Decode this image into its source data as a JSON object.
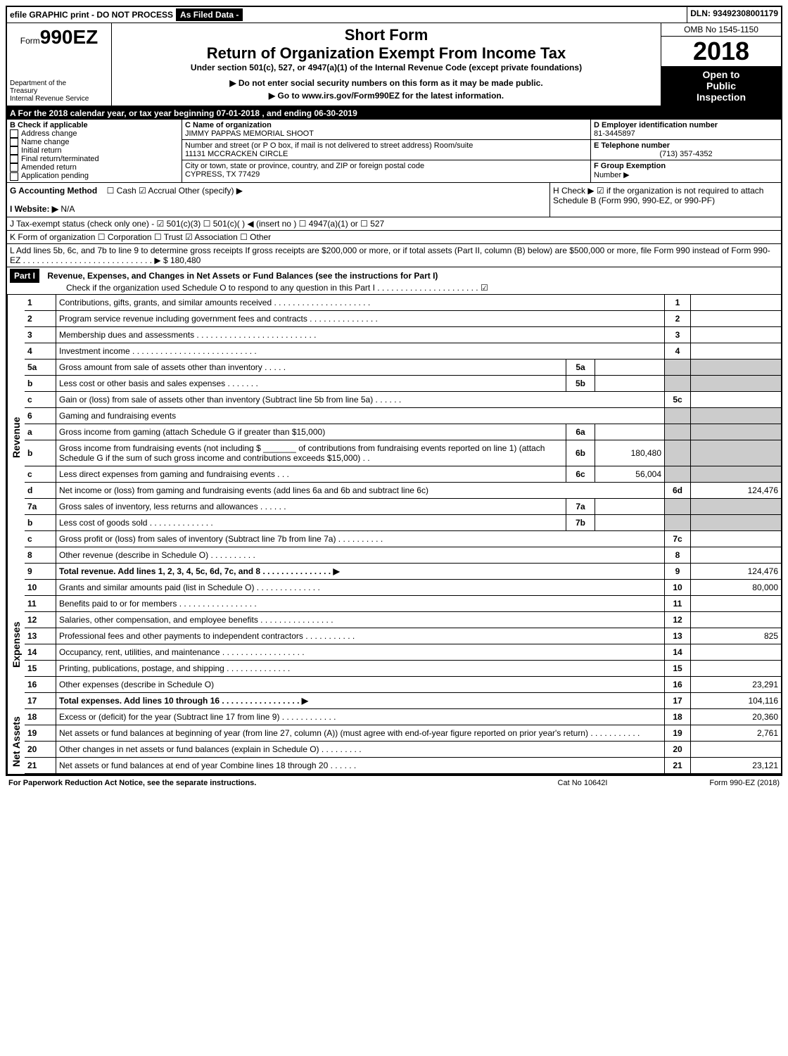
{
  "topbar": {
    "efile": "efile GRAPHIC print - DO NOT PROCESS",
    "as_filed": "As Filed Data -",
    "dln": "DLN: 93492308001179"
  },
  "header": {
    "form_prefix": "Form",
    "form_number": "990EZ",
    "short_form": "Short Form",
    "return_title": "Return of Organization Exempt From Income Tax",
    "subtitle": "Under section 501(c), 527, or 4947(a)(1) of the Internal Revenue Code (except private foundations)",
    "warn1": "▶ Do not enter social security numbers on this form as it may be made public.",
    "warn2": "▶ Go to www.irs.gov/Form990EZ for the latest information.",
    "dept1": "Department of the",
    "dept2": "Treasury",
    "dept3": "Internal Revenue Service",
    "omb": "OMB No 1545-1150",
    "year": "2018",
    "open1": "Open to",
    "open2": "Public",
    "open3": "Inspection"
  },
  "row_a": "A  For the 2018 calendar year, or tax year beginning 07-01-2018          , and ending 06-30-2019",
  "section_b": {
    "label": "B  Check if applicable",
    "items": [
      "Address change",
      "Name change",
      "Initial return",
      "Final return/terminated",
      "Amended return",
      "Application pending"
    ]
  },
  "section_c": {
    "c_label": "C Name of organization",
    "c_value": "JIMMY PAPPAS MEMORIAL SHOOT",
    "addr_label": "Number and street (or P O box, if mail is not delivered to street address)  Room/suite",
    "addr_value": "11131 MCCRACKEN CIRCLE",
    "city_label": "City or town, state or province, country, and ZIP or foreign postal code",
    "city_value": "CYPRESS, TX  77429"
  },
  "section_d": {
    "d_label": "D Employer identification number",
    "d_value": "81-3445897",
    "e_label": "E Telephone number",
    "e_value": "(713) 357-4352",
    "f_label": "F Group Exemption",
    "f_label2": "Number    ▶"
  },
  "g": {
    "label": "G Accounting Method",
    "opts": "☐ Cash   ☑ Accrual   Other (specify) ▶"
  },
  "h": {
    "text": "H   Check ▶   ☑  if the organization is not required to attach Schedule B (Form 990, 990-EZ, or 990-PF)"
  },
  "i": {
    "label": "I Website: ▶",
    "value": "N/A"
  },
  "j": "J Tax-exempt status (check only one) - ☑ 501(c)(3) ☐ 501(c)( ) ◀ (insert no ) ☐ 4947(a)(1) or ☐ 527",
  "k": "K Form of organization    ☐ Corporation  ☐ Trust  ☑ Association  ☐ Other",
  "l": {
    "text": "L Add lines 5b, 6c, and 7b to line 9 to determine gross receipts  If gross receipts are $200,000 or more, or if total assets (Part II, column (B) below) are $500,000 or more, file Form 990 instead of Form 990-EZ . . . . . . . . . . . . . . . . . . . . . . . . . . . . ▶",
    "value": "$ 180,480"
  },
  "part1": {
    "label": "Part I",
    "title": "Revenue, Expenses, and Changes in Net Assets or Fund Balances (see the instructions for Part I)",
    "sub": "Check if the organization used Schedule O to respond to any question in this Part I . . . . . . . . . . . . . . . . . . . . . .  ☑"
  },
  "sections": {
    "revenue": "Revenue",
    "expenses": "Expenses",
    "netassets": "Net Assets"
  },
  "lines": [
    {
      "section": "revenue",
      "num": "1",
      "desc": "Contributions, gifts, grants, and similar amounts received . . . . . . . . . . . . . . . . . . . . .",
      "rnum": "1",
      "rval": "",
      "type": "simple"
    },
    {
      "section": "revenue",
      "num": "2",
      "desc": "Program service revenue including government fees and contracts . . . . . . . . . . . . . . .",
      "rnum": "2",
      "rval": "",
      "type": "simple"
    },
    {
      "section": "revenue",
      "num": "3",
      "desc": "Membership dues and assessments . . . . . . . . . . . . . . . . . . . . . . . . . .",
      "rnum": "3",
      "rval": "",
      "type": "simple"
    },
    {
      "section": "revenue",
      "num": "4",
      "desc": "Investment income . . . . . . . . . . . . . . . . . . . . . . . . . . .",
      "rnum": "4",
      "rval": "",
      "type": "simple"
    },
    {
      "section": "revenue",
      "num": "5a",
      "desc": "Gross amount from sale of assets other than inventory . . . . .",
      "sbox": "5a",
      "sval": "",
      "type": "sub",
      "shaded": true
    },
    {
      "section": "revenue",
      "num": "b",
      "desc": "Less  cost or other basis and sales expenses . . . . . . .",
      "sbox": "5b",
      "sval": "",
      "type": "sub",
      "shaded": true
    },
    {
      "section": "revenue",
      "num": "c",
      "desc": "Gain or (loss) from sale of assets other than inventory (Subtract line 5b from line 5a) . . . . . .",
      "rnum": "5c",
      "rval": "",
      "type": "simple"
    },
    {
      "section": "revenue",
      "num": "6",
      "desc": "Gaming and fundraising events",
      "type": "header",
      "shaded": true
    },
    {
      "section": "revenue",
      "num": "a",
      "desc": "Gross income from gaming (attach Schedule G if greater than $15,000)",
      "sbox": "6a",
      "sval": "",
      "type": "sub",
      "shaded": true
    },
    {
      "section": "revenue",
      "num": "b",
      "desc": "Gross income from fundraising events (not including $ _______ of contributions from fundraising events reported on line 1) (attach Schedule G if the sum of such gross income and contributions exceeds $15,000)  . .",
      "sbox": "6b",
      "sval": "180,480",
      "type": "sub",
      "shaded": true
    },
    {
      "section": "revenue",
      "num": "c",
      "desc": "Less  direct expenses from gaming and fundraising events     . . .",
      "sbox": "6c",
      "sval": "56,004",
      "type": "sub",
      "shaded": true
    },
    {
      "section": "revenue",
      "num": "d",
      "desc": "Net income or (loss) from gaming and fundraising events (add lines 6a and 6b and subtract line 6c)",
      "rnum": "6d",
      "rval": "124,476",
      "type": "simple"
    },
    {
      "section": "revenue",
      "num": "7a",
      "desc": "Gross sales of inventory, less returns and allowances . . . . . .",
      "sbox": "7a",
      "sval": "",
      "type": "sub",
      "shaded": true
    },
    {
      "section": "revenue",
      "num": "b",
      "desc": "Less  cost of goods sold           . . . . . . . . . . . . . .",
      "sbox": "7b",
      "sval": "",
      "type": "sub",
      "shaded": true
    },
    {
      "section": "revenue",
      "num": "c",
      "desc": "Gross profit or (loss) from sales of inventory (Subtract line 7b from line 7a) . . . . . . . . . .",
      "rnum": "7c",
      "rval": "",
      "type": "simple"
    },
    {
      "section": "revenue",
      "num": "8",
      "desc": "Other revenue (describe in Schedule O)                           . . . . . . . . . .",
      "rnum": "8",
      "rval": "",
      "type": "simple"
    },
    {
      "section": "revenue",
      "num": "9",
      "desc": "Total revenue. Add lines 1, 2, 3, 4, 5c, 6d, 7c, and 8   . . . . . . . . . . . . . . .   ▶",
      "rnum": "9",
      "rval": "124,476",
      "type": "simple",
      "bold": true
    },
    {
      "section": "expenses",
      "num": "10",
      "desc": "Grants and similar amounts paid (list in Schedule O)          . . . . . . . . . . . . . .",
      "rnum": "10",
      "rval": "80,000",
      "type": "simple"
    },
    {
      "section": "expenses",
      "num": "11",
      "desc": "Benefits paid to or for members                   . . . . . . . . . . . . . . . . .",
      "rnum": "11",
      "rval": "",
      "type": "simple"
    },
    {
      "section": "expenses",
      "num": "12",
      "desc": "Salaries, other compensation, and employee benefits . . . . . . . . . . . . . . . .",
      "rnum": "12",
      "rval": "",
      "type": "simple"
    },
    {
      "section": "expenses",
      "num": "13",
      "desc": "Professional fees and other payments to independent contractors  . . . . . . . . . . .",
      "rnum": "13",
      "rval": "825",
      "type": "simple"
    },
    {
      "section": "expenses",
      "num": "14",
      "desc": "Occupancy, rent, utilities, and maintenance . . . . . . . . . . . . . . . . . .",
      "rnum": "14",
      "rval": "",
      "type": "simple"
    },
    {
      "section": "expenses",
      "num": "15",
      "desc": "Printing, publications, postage, and shipping            . . . . . . . . . . . . . .",
      "rnum": "15",
      "rval": "",
      "type": "simple"
    },
    {
      "section": "expenses",
      "num": "16",
      "desc": "Other expenses (describe in Schedule O)                                    ",
      "rnum": "16",
      "rval": "23,291",
      "type": "simple"
    },
    {
      "section": "expenses",
      "num": "17",
      "desc": "Total expenses. Add lines 10 through 16         . . . . . . . . . . . . . . . . .   ▶",
      "rnum": "17",
      "rval": "104,116",
      "type": "simple",
      "bold": true
    },
    {
      "section": "netassets",
      "num": "18",
      "desc": "Excess or (deficit) for the year (Subtract line 17 from line 9)      . . . . . . . . . . . .",
      "rnum": "18",
      "rval": "20,360",
      "type": "simple"
    },
    {
      "section": "netassets",
      "num": "19",
      "desc": "Net assets or fund balances at beginning of year (from line 27, column (A)) (must agree with end-of-year figure reported on prior year's return)                . . . . . . . . . . .",
      "rnum": "19",
      "rval": "2,761",
      "type": "simple"
    },
    {
      "section": "netassets",
      "num": "20",
      "desc": "Other changes in net assets or fund balances (explain in Schedule O)     . . . . . . . . .",
      "rnum": "20",
      "rval": "",
      "type": "simple"
    },
    {
      "section": "netassets",
      "num": "21",
      "desc": "Net assets or fund balances at end of year  Combine lines 18 through 20        . . . . . .",
      "rnum": "21",
      "rval": "23,121",
      "type": "simple"
    }
  ],
  "footer": {
    "left": "For Paperwork Reduction Act Notice, see the separate instructions.",
    "mid": "Cat  No  10642I",
    "right": "Form 990-EZ (2018)"
  },
  "colors": {
    "black": "#000000",
    "white": "#ffffff",
    "grey": "#cccccc"
  }
}
